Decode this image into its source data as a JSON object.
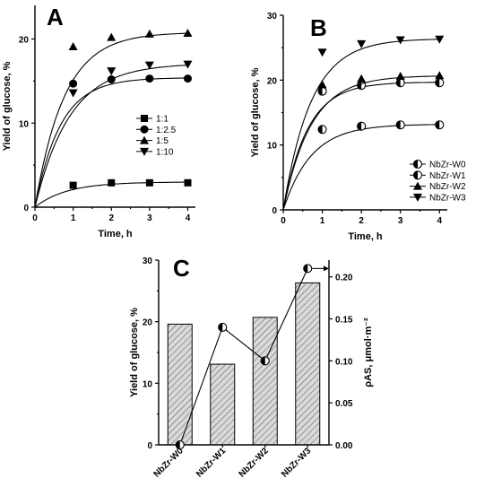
{
  "chart_data": [
    {
      "panel": "A",
      "type": "line",
      "xlabel": "Time, h",
      "ylabel": "Yield of glucose, %",
      "xlim": [
        0,
        4.2
      ],
      "ylim": [
        0,
        24
      ],
      "xticks": [
        0,
        1,
        2,
        3,
        4
      ],
      "yticks": [
        0,
        10,
        20
      ],
      "legend_position": "center-right",
      "series": [
        {
          "name": "1:1",
          "marker": "square",
          "x": [
            1,
            2,
            3,
            4
          ],
          "y": [
            2.6,
            2.9,
            2.9,
            2.9
          ],
          "fit": {
            "a": 3.0,
            "k": 1.2
          }
        },
        {
          "name": "1:2.5",
          "marker": "circle",
          "x": [
            1,
            2,
            3,
            4
          ],
          "y": [
            14.7,
            15.2,
            15.3,
            15.3
          ],
          "fit": {
            "a": 15.4,
            "k": 1.5
          }
        },
        {
          "name": "1:5",
          "marker": "triangle-up",
          "x": [
            1,
            2,
            3,
            4
          ],
          "y": [
            19.1,
            20.2,
            20.6,
            20.7
          ],
          "fit": {
            "a": 20.8,
            "k": 1.3
          }
        },
        {
          "name": "1:10",
          "marker": "triangle-down",
          "x": [
            1,
            2,
            3,
            4
          ],
          "y": [
            13.6,
            16.2,
            16.9,
            17.0
          ],
          "fit": {
            "a": 17.1,
            "k": 1.1
          }
        }
      ]
    },
    {
      "panel": "B",
      "type": "line",
      "xlabel": "Time, h",
      "ylabel": "Yield of glucose, %",
      "xlim": [
        0,
        4.2
      ],
      "ylim": [
        0,
        30
      ],
      "xticks": [
        0,
        1,
        2,
        3,
        4
      ],
      "yticks": [
        0,
        10,
        20,
        30
      ],
      "legend_position": "bottom-right",
      "series": [
        {
          "name": "NbZr-W0",
          "marker": "half-circle",
          "x": [
            1,
            2,
            3,
            4
          ],
          "y": [
            18.3,
            19.2,
            19.6,
            19.6
          ],
          "fit": {
            "a": 19.7,
            "k": 1.6
          }
        },
        {
          "name": "NbZr-W1",
          "marker": "half-circle",
          "x": [
            1,
            2,
            3,
            4
          ],
          "y": [
            12.4,
            12.9,
            13.1,
            13.1
          ],
          "fit": {
            "a": 13.2,
            "k": 1.4
          }
        },
        {
          "name": "NbZr-W2",
          "marker": "triangle-up",
          "x": [
            1,
            2,
            3,
            4
          ],
          "y": [
            19.3,
            20.2,
            20.6,
            20.7
          ],
          "fit": {
            "a": 20.7,
            "k": 1.4
          }
        },
        {
          "name": "NbZr-W3",
          "marker": "triangle-down",
          "x": [
            1,
            2,
            3,
            4
          ],
          "y": [
            24.3,
            25.6,
            26.2,
            26.3
          ],
          "fit": {
            "a": 26.4,
            "k": 1.4
          }
        }
      ]
    },
    {
      "panel": "C",
      "type": "bar",
      "categories": [
        "NbZr-W0",
        "NbZr-W1",
        "NbZr-W2",
        "NbZr-W3"
      ],
      "values": [
        19.6,
        13.1,
        20.7,
        26.3
      ],
      "ylabel": "Yield of glucose, %",
      "ylim": [
        0,
        30
      ],
      "yticks": [
        0,
        10,
        20,
        30
      ],
      "y2label": "ρAS, μmol·m⁻²",
      "y2lim": [
        0,
        0.22
      ],
      "y2ticks": [
        "0.00",
        "0.05",
        "0.10",
        "0.15",
        "0.20"
      ],
      "secondary_series": {
        "marker": "half-circle",
        "values": [
          0.0,
          0.14,
          0.1,
          0.21
        ]
      }
    }
  ],
  "labels": {
    "panel_a": "A",
    "panel_b": "B",
    "panel_c": "C"
  }
}
